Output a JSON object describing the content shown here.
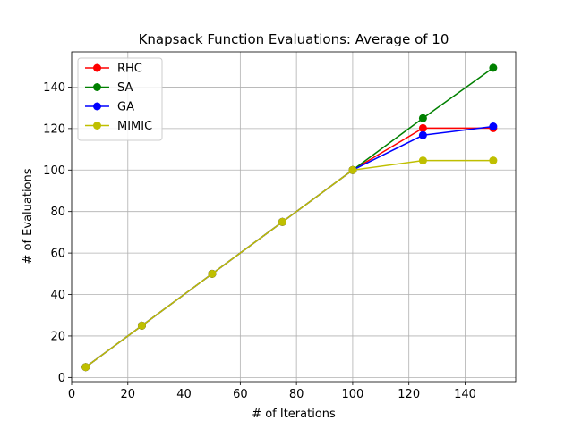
{
  "chart_data": {
    "type": "line",
    "title": "Knapsack Function Evaluations: Average of 10",
    "xlabel": "# of Iterations",
    "ylabel": "# of Evaluations",
    "x": [
      5,
      25,
      50,
      75,
      100,
      125,
      150
    ],
    "xlim": [
      0,
      158
    ],
    "ylim": [
      -2,
      157
    ],
    "xticks": [
      0,
      20,
      40,
      60,
      80,
      100,
      120,
      140
    ],
    "yticks": [
      0,
      20,
      40,
      60,
      80,
      100,
      120,
      140
    ],
    "grid": true,
    "legend_position": "top-left",
    "series": [
      {
        "name": "RHC",
        "color": "#ff0000",
        "values": [
          5,
          25,
          50,
          75,
          100,
          120.2,
          120.2
        ]
      },
      {
        "name": "SA",
        "color": "#008000",
        "values": [
          5,
          25,
          50,
          75,
          100,
          125,
          149.3
        ]
      },
      {
        "name": "GA",
        "color": "#0000ff",
        "values": [
          5,
          25,
          50,
          75,
          100,
          116.8,
          121
        ]
      },
      {
        "name": "MIMIC",
        "color": "#bfbf00",
        "values": [
          5,
          25,
          50,
          75,
          100,
          104.6,
          104.6
        ]
      }
    ]
  }
}
